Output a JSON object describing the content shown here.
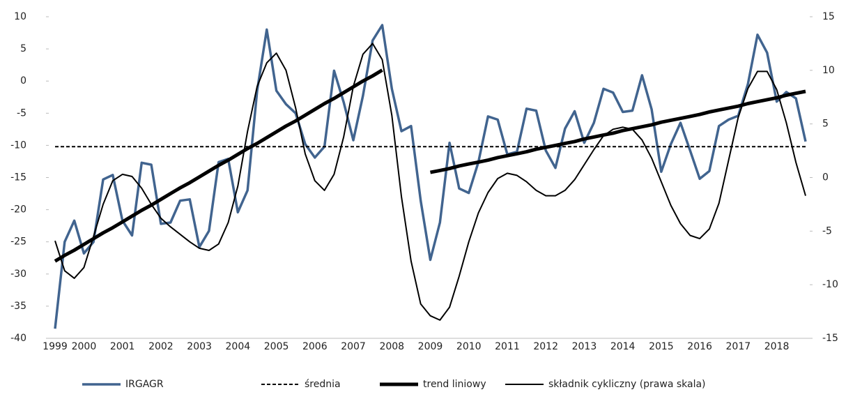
{
  "chart_data": {
    "type": "line",
    "categories": [
      "1999",
      null,
      null,
      "2000",
      null,
      null,
      null,
      "2001",
      null,
      null,
      null,
      "2002",
      null,
      null,
      null,
      "2003",
      null,
      null,
      null,
      "2004",
      null,
      null,
      null,
      "2005",
      null,
      null,
      null,
      "2006",
      null,
      null,
      null,
      "2007",
      null,
      null,
      null,
      "2008",
      null,
      null,
      null,
      "2009",
      null,
      null,
      null,
      "2010",
      null,
      null,
      null,
      "2011",
      null,
      null,
      null,
      "2012",
      null,
      null,
      null,
      "2013",
      null,
      null,
      null,
      "2014",
      null,
      null,
      null,
      "2015",
      null,
      null,
      null,
      "2016",
      null,
      null,
      null,
      "2017",
      null,
      null,
      null,
      "2018",
      null,
      null,
      null
    ],
    "ylim": [
      -40,
      10
    ],
    "yticks": [
      -40,
      -35,
      -30,
      -25,
      -20,
      -15,
      -10,
      -5,
      0,
      5,
      10
    ],
    "y2lim": [
      -15,
      15
    ],
    "y2ticks": [
      -15,
      -10,
      -5,
      0,
      5,
      10,
      15
    ],
    "grid": false,
    "legend": "bottom",
    "series": [
      {
        "name": "IRGAGR",
        "color": "#41648f",
        "width": 3.5,
        "dash": false,
        "values": [
          -38.5,
          -25,
          -21.7,
          -26.8,
          -25,
          -15.3,
          -14.6,
          -21.7,
          -24,
          -12.7,
          -13,
          -22.2,
          -22,
          -18.6,
          -18.4,
          -25.8,
          -23.3,
          -12.6,
          -12.1,
          -20.4,
          -17,
          -1.5,
          8,
          -1.5,
          -3.6,
          -5,
          -9.8,
          -11.9,
          -10.2,
          1.6,
          -3.3,
          -9.2,
          -2.3,
          6.3,
          8.7,
          -1.2,
          -7.8,
          -7,
          -18.6,
          -27.8,
          -22,
          -9.6,
          -16.7,
          -17.4,
          -12.6,
          -5.5,
          -6,
          -11.4,
          -11,
          -4.3,
          -4.6,
          -10.8,
          -13.5,
          -7.4,
          -4.7,
          -9.6,
          -6.5,
          -1.2,
          -1.8,
          -4.8,
          -4.6,
          0.9,
          -4.4,
          -14.1,
          -9.8,
          -6.5,
          -10.8,
          -15.2,
          -14,
          -7,
          -6,
          -5.4,
          -0.5,
          7.2,
          4.4,
          -3.2,
          -1.7,
          -2.7,
          -9.4
        ]
      },
      {
        "name": "średnia",
        "color": "#000000",
        "width": 2,
        "dash": true,
        "value": -10.2
      },
      {
        "name": "trend liniowy",
        "color": "#000000",
        "width": 5,
        "dash": false,
        "values": [
          -28.0,
          -27.1,
          -26.3,
          -25.4,
          -24.5,
          -23.6,
          -22.8,
          -21.9,
          -21.0,
          -20.1,
          -19.3,
          -18.4,
          -17.5,
          -16.6,
          -15.8,
          -14.9,
          -14.0,
          -13.1,
          -12.3,
          -11.4,
          -10.5,
          -9.7,
          -8.8,
          -7.9,
          -7.0,
          -6.2,
          -5.3,
          -4.4,
          -3.5,
          -2.7,
          -1.8,
          -0.9,
          0.0,
          0.8,
          1.7,
          null,
          null,
          null,
          null,
          -14.2,
          -13.9,
          -13.6,
          -13.2,
          -12.9,
          -12.6,
          -12.3,
          -11.9,
          -11.6,
          -11.3,
          -11.0,
          -10.6,
          -10.3,
          -10.0,
          -9.7,
          -9.4,
          -9.0,
          -8.7,
          -8.4,
          -8.1,
          -7.7,
          -7.4,
          -7.1,
          -6.8,
          -6.4,
          -6.1,
          -5.8,
          -5.5,
          -5.2,
          -4.8,
          -4.5,
          -4.2,
          -3.9,
          -3.5,
          -3.2,
          -2.9,
          -2.6,
          -2.2,
          -1.9,
          -1.6
        ]
      },
      {
        "name": "składnik cykliczny (prawa skala)",
        "color": "#000000",
        "width": 2,
        "dash": false,
        "axis": "y2",
        "values": [
          -5.9,
          -8.7,
          -9.4,
          -8.4,
          -5.5,
          -2.5,
          -0.3,
          0.3,
          0.1,
          -1.0,
          -2.5,
          -3.8,
          -4.6,
          -5.3,
          -6.0,
          -6.6,
          -6.8,
          -6.2,
          -4.2,
          -0.8,
          4.3,
          8.5,
          10.7,
          11.6,
          10.0,
          6.5,
          2.2,
          -0.3,
          -1.2,
          0.3,
          3.8,
          8.5,
          11.5,
          12.5,
          11.0,
          5.8,
          -1.8,
          -7.8,
          -11.8,
          -12.9,
          -13.3,
          -12.1,
          -9.2,
          -6.0,
          -3.3,
          -1.4,
          -0.1,
          0.4,
          0.2,
          -0.4,
          -1.2,
          -1.7,
          -1.7,
          -1.2,
          -0.2,
          1.2,
          2.6,
          3.9,
          4.5,
          4.7,
          4.5,
          3.5,
          1.8,
          -0.4,
          -2.6,
          -4.3,
          -5.4,
          -5.7,
          -4.8,
          -2.4,
          1.6,
          5.6,
          8.3,
          9.9,
          9.9,
          8.2,
          5.1,
          1.4,
          -1.7
        ]
      }
    ]
  }
}
